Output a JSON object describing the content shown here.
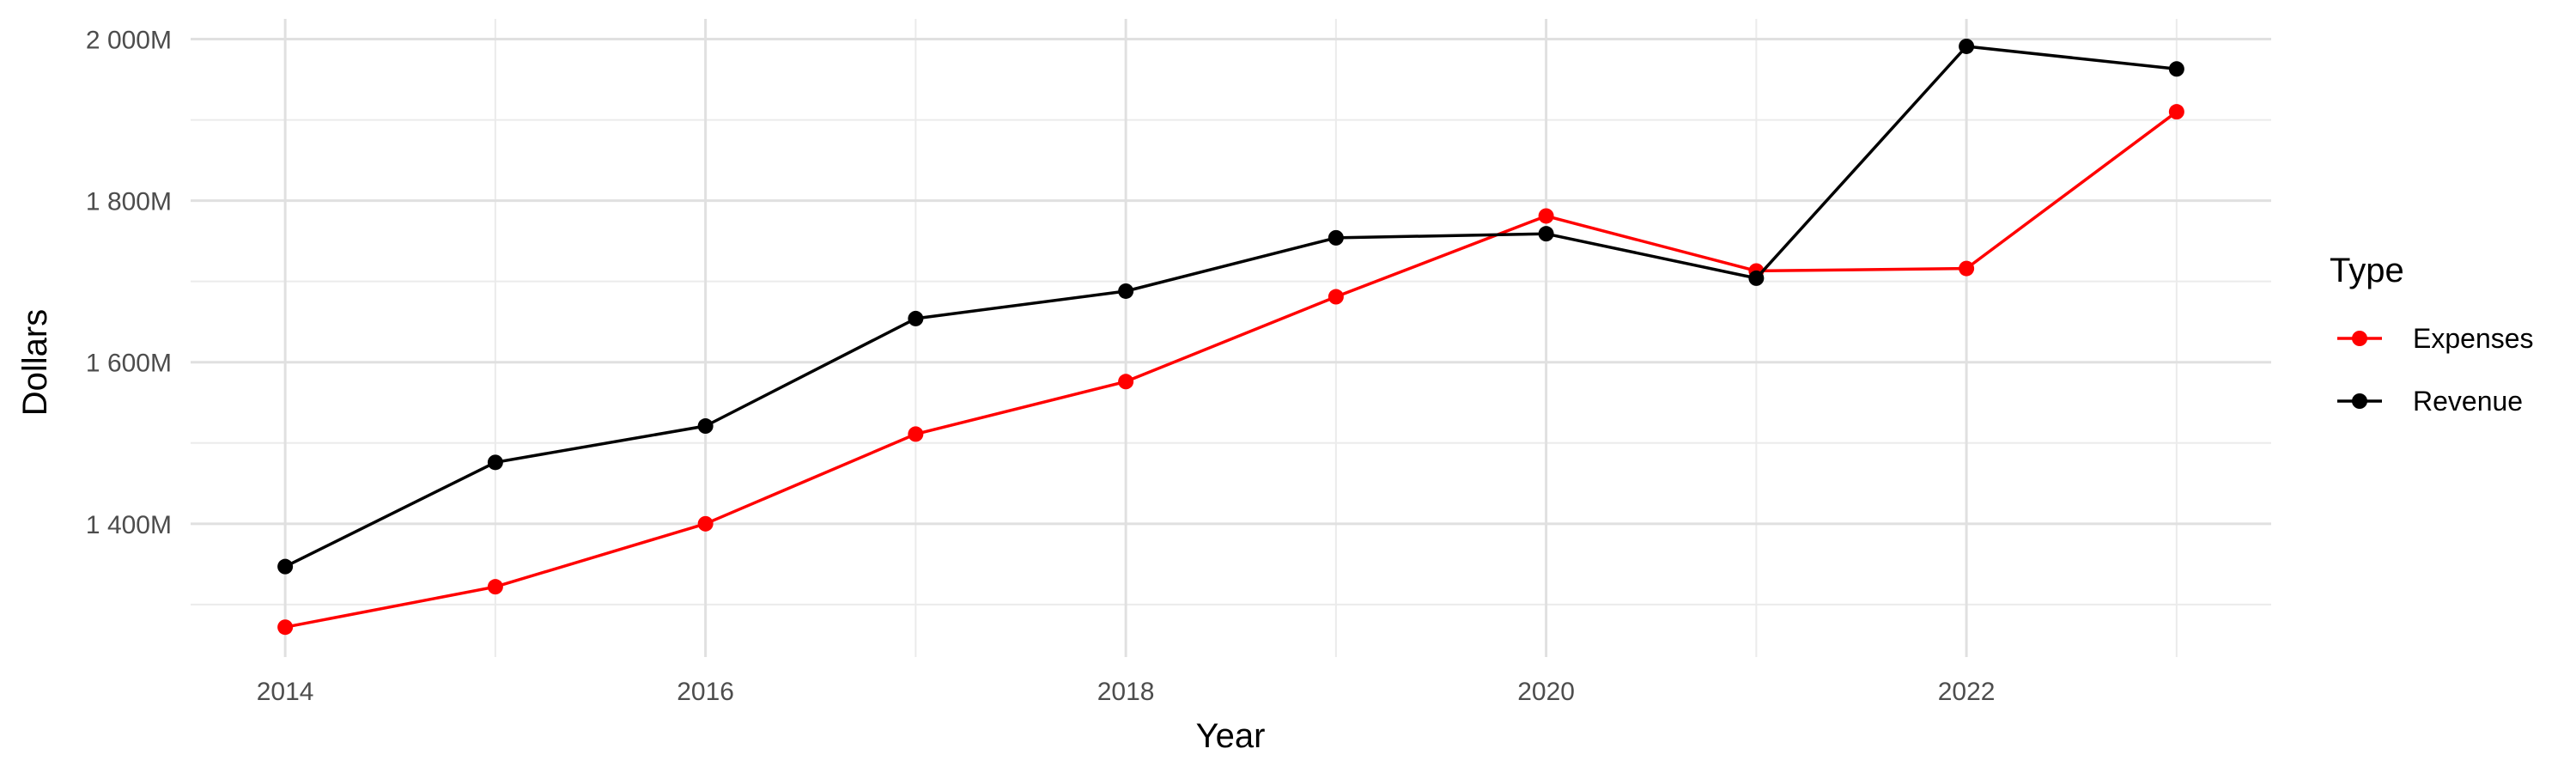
{
  "chart_data": {
    "type": "line",
    "x": [
      2014,
      2015,
      2016,
      2017,
      2018,
      2019,
      2020,
      2021,
      2022,
      2023
    ],
    "series": [
      {
        "name": "Expenses",
        "color": "#ff0000",
        "values": [
          1272,
          1322,
          1400,
          1511,
          1576,
          1681,
          1781,
          1713,
          1716,
          1910
        ]
      },
      {
        "name": "Revenue",
        "color": "#000000",
        "values": [
          1347,
          1476,
          1521,
          1654,
          1688,
          1754,
          1759,
          1704,
          1991,
          1963
        ]
      }
    ],
    "xlabel": "Year",
    "ylabel": "Dollars",
    "xlim": [
      2013.55,
      2023.45
    ],
    "ylim": [
      1235,
      2025
    ],
    "x_ticks": [
      2014,
      2016,
      2018,
      2020,
      2022
    ],
    "x_tick_labels": [
      "2014",
      "2016",
      "2018",
      "2020",
      "2022"
    ],
    "y_ticks": [
      1400,
      1600,
      1800,
      2000
    ],
    "y_tick_labels": [
      "1 400M",
      "1 600M",
      "1 800M",
      "2 000M"
    ],
    "grid": true,
    "legend": {
      "title": "Type",
      "placement": "right",
      "entries": [
        "Expenses",
        "Revenue"
      ]
    }
  }
}
